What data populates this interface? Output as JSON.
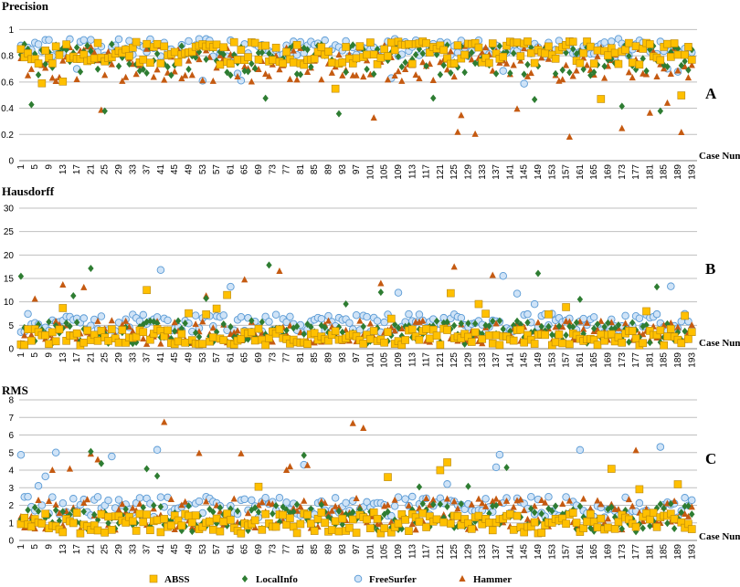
{
  "legend": [
    {
      "key": "abss",
      "label": "ABSS",
      "color": "#ffc000",
      "marker": "square"
    },
    {
      "key": "localinfo",
      "label": "LocalInfo",
      "color": "#2e7d32",
      "marker": "diamond"
    },
    {
      "key": "freesurfer",
      "label": "FreeSurfer",
      "color": "#cfe3f7",
      "marker": "circle"
    },
    {
      "key": "hammer",
      "label": "Hammer",
      "color": "#c55a11",
      "marker": "triangle"
    }
  ],
  "chart_data": [
    {
      "type": "scatter",
      "title": "Precision",
      "panel_label": "A",
      "xlabel": "Case Number",
      "x_tick_labels": [
        "1",
        "5",
        "9",
        "13",
        "17",
        "21",
        "25",
        "29",
        "33",
        "37",
        "41",
        "45",
        "49",
        "53",
        "57",
        "61",
        "65",
        "69",
        "73",
        "77",
        "81",
        "85",
        "89",
        "93",
        "97",
        "101",
        "105",
        "109",
        "113",
        "117",
        "121",
        "125",
        "129",
        "133",
        "137",
        "141",
        "145",
        "149",
        "153",
        "157",
        "161",
        "165",
        "169",
        "173",
        "177",
        "181",
        "185",
        "189",
        "193"
      ],
      "xlim": [
        1,
        194
      ],
      "ylim": [
        0,
        1.1
      ],
      "yticks": [
        0,
        0.2,
        0.4,
        0.6,
        0.8,
        1
      ],
      "ytick_labels": [
        "0",
        "0.2",
        "0.4",
        "0.6",
        "0.8",
        "1"
      ],
      "grid": true,
      "series": [
        {
          "name": "ABSS",
          "base": 0.82,
          "spread": 0.09
        },
        {
          "name": "LocalInfo",
          "base": 0.77,
          "spread": 0.12
        },
        {
          "name": "FreeSurfer",
          "base": 0.86,
          "spread": 0.07
        },
        {
          "name": "Hammer",
          "base": 0.74,
          "spread": 0.14
        }
      ]
    },
    {
      "type": "scatter",
      "title": "Hausdorff",
      "panel_label": "B",
      "xlabel": "Case Number",
      "x_tick_labels": [
        "1",
        "5",
        "9",
        "13",
        "17",
        "21",
        "25",
        "29",
        "33",
        "37",
        "41",
        "45",
        "49",
        "53",
        "57",
        "61",
        "65",
        "69",
        "73",
        "77",
        "81",
        "85",
        "89",
        "93",
        "97",
        "101",
        "105",
        "109",
        "113",
        "117",
        "121",
        "125",
        "129",
        "133",
        "137",
        "141",
        "145",
        "149",
        "153",
        "157",
        "161",
        "165",
        "169",
        "173",
        "177",
        "181",
        "185",
        "189",
        "193"
      ],
      "xlim": [
        1,
        194
      ],
      "ylim": [
        0,
        30
      ],
      "yticks": [
        0,
        5,
        10,
        15,
        20,
        25,
        30
      ],
      "ytick_labels": [
        "0",
        "5",
        "10",
        "15",
        "20",
        "25",
        "30"
      ],
      "grid": true,
      "series": [
        {
          "name": "ABSS",
          "base": 2.5,
          "spread": 1.8
        },
        {
          "name": "LocalInfo",
          "base": 3.5,
          "spread": 2.5
        },
        {
          "name": "FreeSurfer",
          "base": 5.5,
          "spread": 2.0
        },
        {
          "name": "Hammer",
          "base": 3.5,
          "spread": 2.5
        }
      ]
    },
    {
      "type": "scatter",
      "title": "RMS",
      "panel_label": "C",
      "xlabel": "Case Number",
      "x_tick_labels": [
        "1",
        "5",
        "9",
        "13",
        "17",
        "21",
        "25",
        "29",
        "33",
        "37",
        "41",
        "45",
        "49",
        "53",
        "57",
        "61",
        "65",
        "69",
        "73",
        "77",
        "81",
        "85",
        "89",
        "93",
        "97",
        "101",
        "105",
        "109",
        "113",
        "117",
        "121",
        "125",
        "129",
        "133",
        "137",
        "141",
        "145",
        "149",
        "153",
        "157",
        "161",
        "165",
        "169",
        "173",
        "177",
        "181",
        "185",
        "189",
        "193"
      ],
      "xlim": [
        1,
        194
      ],
      "ylim": [
        0,
        8
      ],
      "yticks": [
        0,
        1,
        2,
        3,
        4,
        5,
        6,
        7,
        8
      ],
      "ytick_labels": [
        "0",
        "1",
        "2",
        "3",
        "4",
        "5",
        "6",
        "7",
        "8"
      ],
      "grid": true,
      "series": [
        {
          "name": "ABSS",
          "base": 1.0,
          "spread": 0.6
        },
        {
          "name": "LocalInfo",
          "base": 1.3,
          "spread": 0.8
        },
        {
          "name": "FreeSurfer",
          "base": 1.9,
          "spread": 0.6
        },
        {
          "name": "Hammer",
          "base": 1.5,
          "spread": 0.9
        }
      ]
    }
  ]
}
